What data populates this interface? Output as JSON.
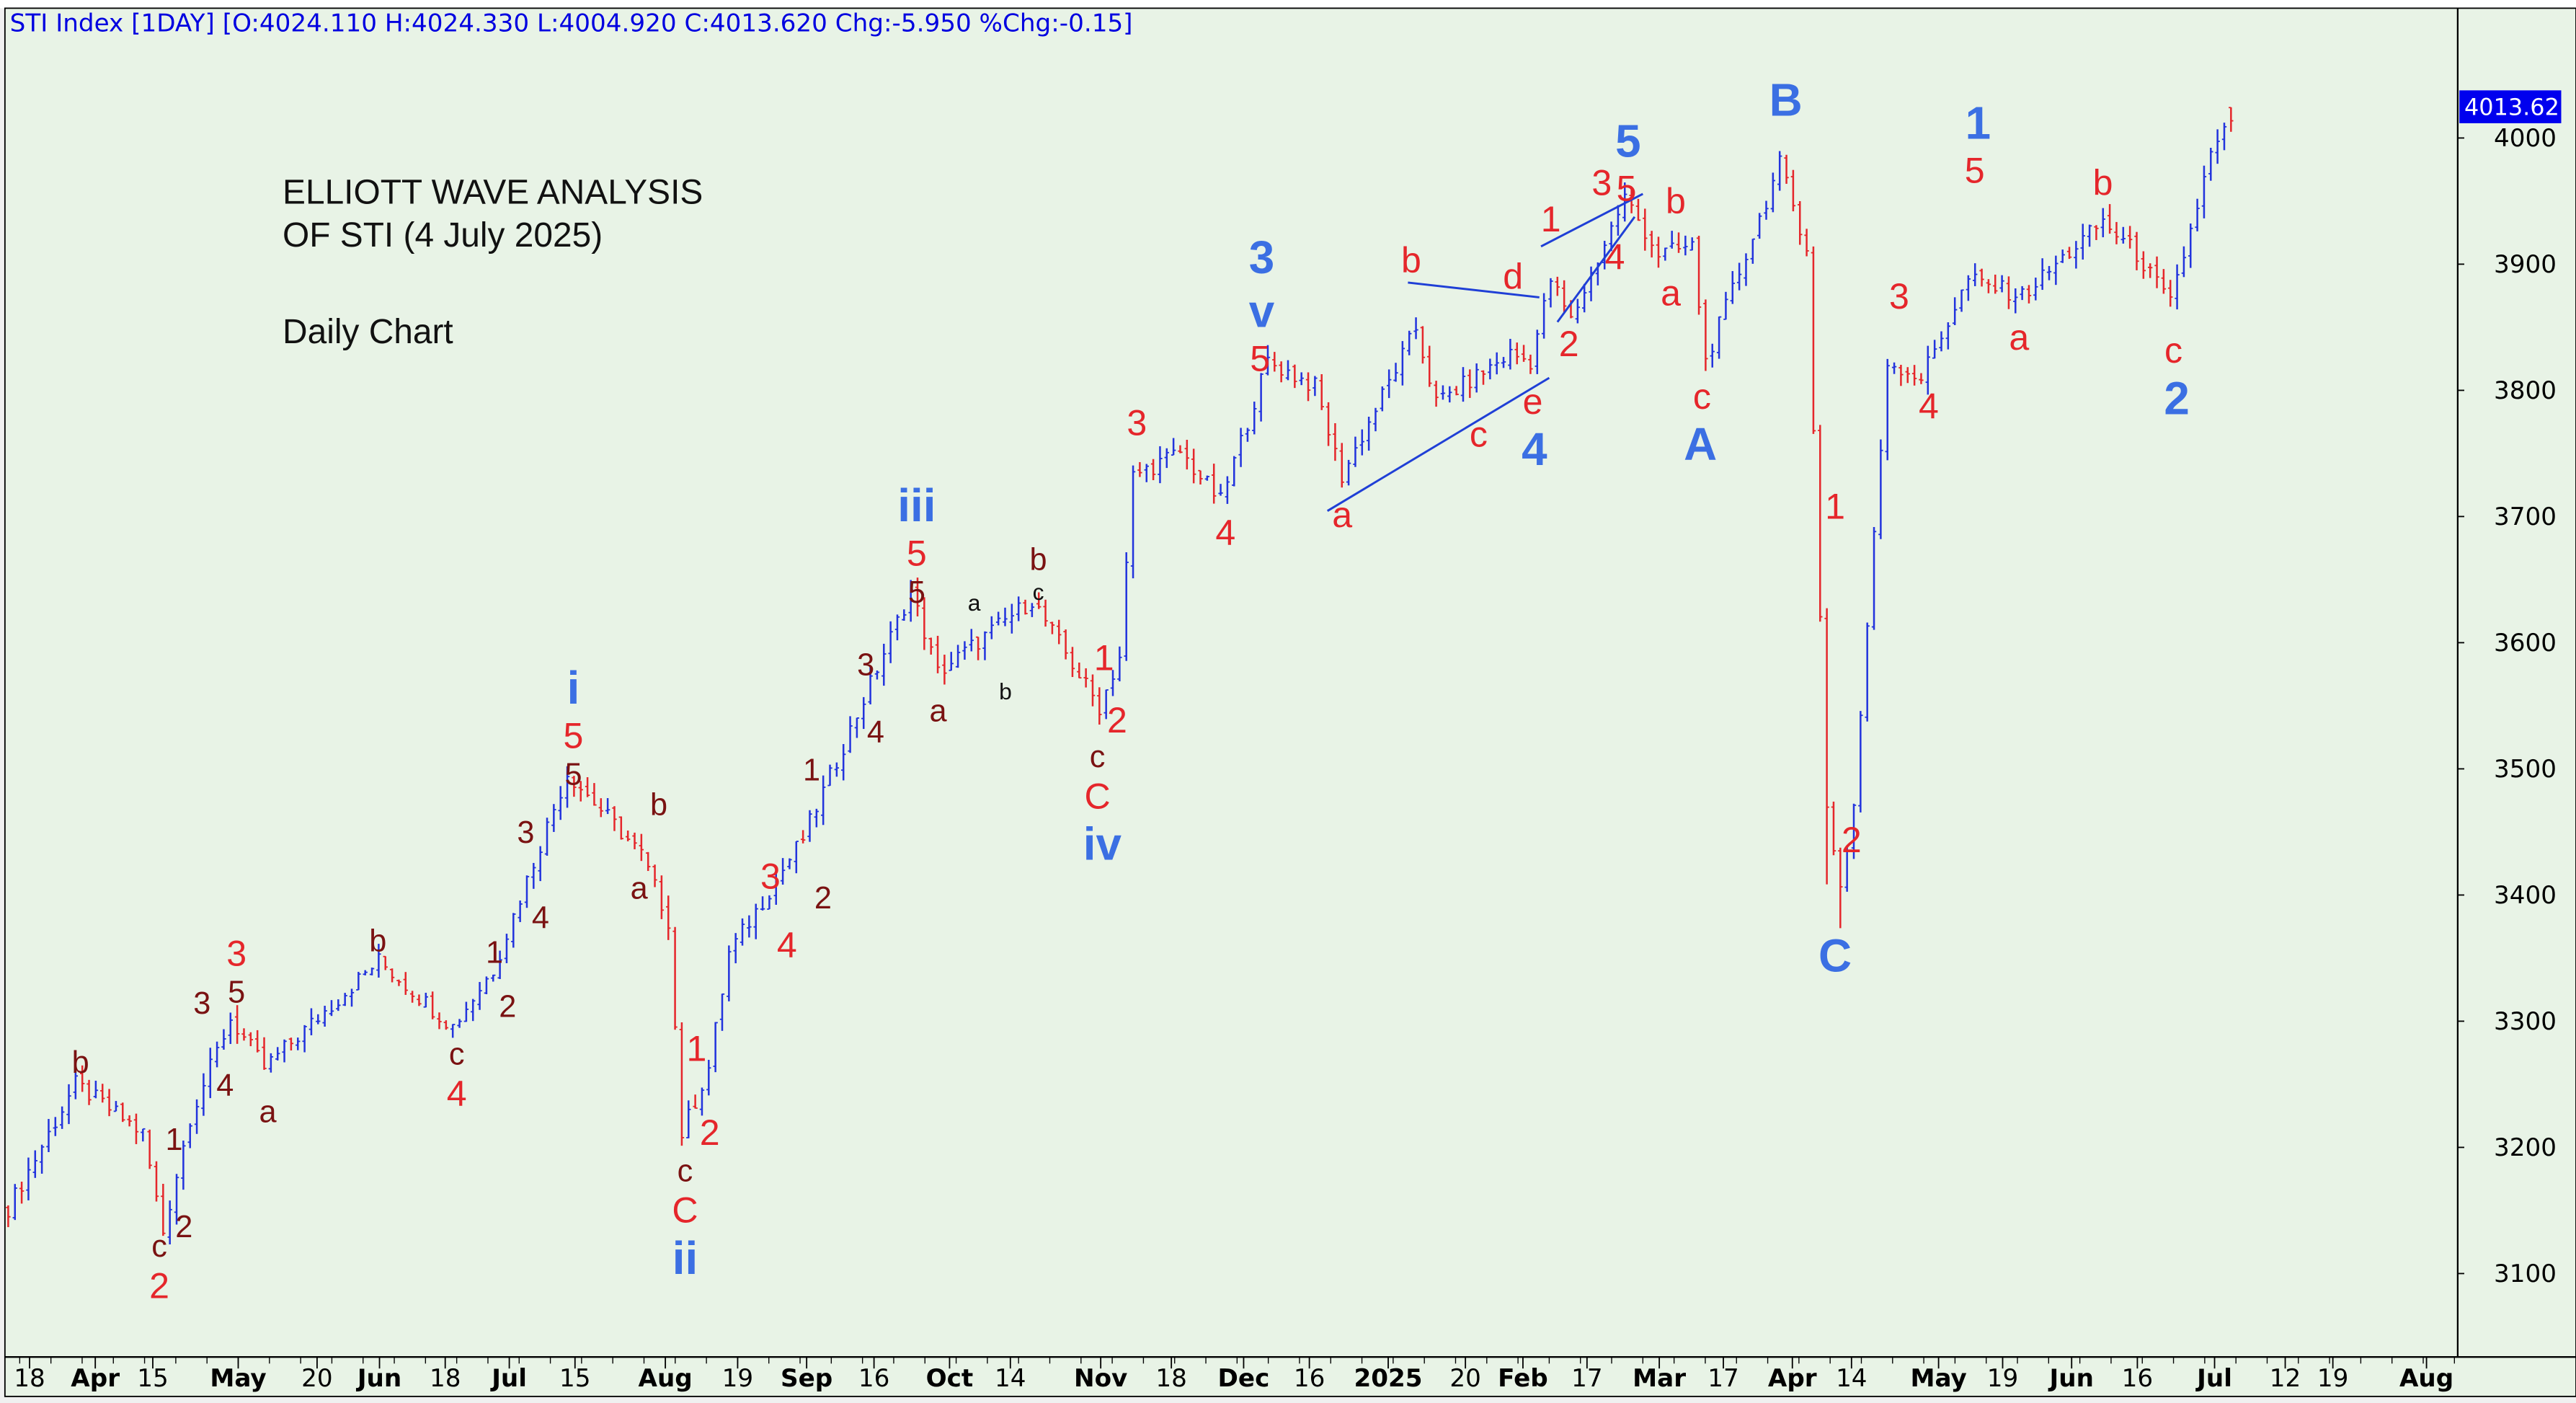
{
  "header": {
    "text": "STI Index [1DAY] [O:4024.110 H:4024.330 L:4004.920 C:4013.620 Chg:-5.950 %Chg:-0.15]"
  },
  "annotation_title": {
    "line1": "ELLIOTT WAVE ANALYSIS",
    "line2": "OF STI (4 July 2025)",
    "line3": "Daily Chart"
  },
  "last_price_tag": "4013.62",
  "colors": {
    "background": "#e8f3e6",
    "up_bar": "#2233dd",
    "down_bar": "#e5262b",
    "wave_red": "#e5262b",
    "wave_brown": "#7a1212",
    "wave_blue": "#3b6fe3",
    "trendline": "#1f3fd6",
    "price_tag": "#0000ee"
  },
  "chart_data": {
    "type": "ohlc",
    "title": "STI Index [1DAY]",
    "ylabel": "",
    "ylim": [
      3050,
      4080
    ],
    "y_ticks": [
      "4000",
      "3900",
      "3800",
      "3700",
      "3600",
      "3500",
      "3400",
      "3300",
      "3200",
      "3100"
    ],
    "x_ticks": [
      {
        "t": "18",
        "bold": false
      },
      {
        "t": "Apr",
        "bold": true
      },
      {
        "t": "15",
        "bold": false
      },
      {
        "t": "May",
        "bold": true
      },
      {
        "t": "20",
        "bold": false
      },
      {
        "t": "Jun",
        "bold": true
      },
      {
        "t": "18",
        "bold": false
      },
      {
        "t": "Jul",
        "bold": true
      },
      {
        "t": "15",
        "bold": false
      },
      {
        "t": "Aug",
        "bold": true
      },
      {
        "t": "19",
        "bold": false
      },
      {
        "t": "Sep",
        "bold": true
      },
      {
        "t": "16",
        "bold": false
      },
      {
        "t": "Oct",
        "bold": true
      },
      {
        "t": "14",
        "bold": false
      },
      {
        "t": "Nov",
        "bold": true
      },
      {
        "t": "18",
        "bold": false
      },
      {
        "t": "Dec",
        "bold": true
      },
      {
        "t": "16",
        "bold": false
      },
      {
        "t": "2025",
        "bold": true
      },
      {
        "t": "20",
        "bold": false
      },
      {
        "t": "Feb",
        "bold": true
      },
      {
        "t": "17",
        "bold": false
      },
      {
        "t": "Mar",
        "bold": true
      },
      {
        "t": "17",
        "bold": false
      },
      {
        "t": "Apr",
        "bold": true
      },
      {
        "t": "14",
        "bold": false
      },
      {
        "t": "May",
        "bold": true
      },
      {
        "t": "19",
        "bold": false
      },
      {
        "t": "Jun",
        "bold": true
      },
      {
        "t": "16",
        "bold": false
      },
      {
        "t": "Jul",
        "bold": true
      },
      {
        "t": "12",
        "bold": false
      },
      {
        "t": "19",
        "bold": false
      },
      {
        "t": "Aug",
        "bold": true
      }
    ],
    "price_path": [
      [
        0,
        3152
      ],
      [
        10,
        3250
      ],
      [
        20,
        3211
      ],
      [
        23,
        3133
      ],
      [
        27,
        3224
      ],
      [
        33,
        3302
      ],
      [
        38,
        3263
      ],
      [
        55,
        3348
      ],
      [
        66,
        3296
      ],
      [
        72,
        3341
      ],
      [
        83,
        3497
      ],
      [
        94,
        3432
      ],
      [
        98,
        3380
      ],
      [
        100,
        3211
      ],
      [
        104,
        3263
      ],
      [
        107,
        3354
      ],
      [
        118,
        3445
      ],
      [
        134,
        3641
      ],
      [
        138,
        3576
      ],
      [
        152,
        3634
      ],
      [
        162,
        3549
      ],
      [
        165,
        3589
      ],
      [
        167,
        3732
      ],
      [
        174,
        3751
      ],
      [
        180,
        3712
      ],
      [
        187,
        3823
      ],
      [
        194,
        3803
      ],
      [
        198,
        3732
      ],
      [
        209,
        3849
      ],
      [
        212,
        3790
      ],
      [
        223,
        3829
      ],
      [
        226,
        3823
      ],
      [
        229,
        3888
      ],
      [
        232,
        3855
      ],
      [
        240,
        3953
      ],
      [
        245,
        3908
      ],
      [
        250,
        3914
      ],
      [
        252,
        3823
      ],
      [
        263,
        3979
      ],
      [
        267,
        3914
      ],
      [
        270,
        3471
      ],
      [
        272,
        3406
      ],
      [
        274,
        3471
      ],
      [
        276,
        3614
      ],
      [
        279,
        3823
      ],
      [
        284,
        3810
      ],
      [
        291,
        3888
      ],
      [
        299,
        3875
      ],
      [
        311,
        3934
      ],
      [
        316,
        3908
      ],
      [
        321,
        3868
      ],
      [
        327,
        3986
      ],
      [
        330,
        4013.62
      ]
    ],
    "last_bar": {
      "open": 4024.11,
      "high": 4024.33,
      "low": 4004.92,
      "close": 4013.62
    },
    "wave_labels": [
      {
        "t": "b",
        "c": "d"
      },
      {
        "t": "1",
        "c": "d"
      },
      {
        "t": "2",
        "c": "d"
      },
      {
        "t": "c",
        "c": "d"
      },
      {
        "t": "2",
        "c": "r"
      },
      {
        "t": "3",
        "c": "d"
      },
      {
        "t": "3",
        "c": "r"
      },
      {
        "t": "5",
        "c": "d"
      },
      {
        "t": "4",
        "c": "d"
      },
      {
        "t": "a",
        "c": "d"
      },
      {
        "t": "b",
        "c": "d"
      },
      {
        "t": "c",
        "c": "d"
      },
      {
        "t": "4",
        "c": "r"
      },
      {
        "t": "1",
        "c": "d"
      },
      {
        "t": "2",
        "c": "d"
      },
      {
        "t": "3",
        "c": "d"
      },
      {
        "t": "4",
        "c": "d"
      },
      {
        "t": "i",
        "c": "b"
      },
      {
        "t": "5",
        "c": "r"
      },
      {
        "t": "5",
        "c": "d"
      },
      {
        "t": "b",
        "c": "d"
      },
      {
        "t": "a",
        "c": "d"
      },
      {
        "t": "c",
        "c": "d"
      },
      {
        "t": "C",
        "c": "r"
      },
      {
        "t": "ii",
        "c": "b"
      },
      {
        "t": "1",
        "c": "r"
      },
      {
        "t": "2",
        "c": "r"
      },
      {
        "t": "3",
        "c": "r"
      },
      {
        "t": "4",
        "c": "r"
      },
      {
        "t": "1",
        "c": "d"
      },
      {
        "t": "2",
        "c": "d"
      },
      {
        "t": "3",
        "c": "d"
      },
      {
        "t": "4",
        "c": "d"
      },
      {
        "t": "iii",
        "c": "b"
      },
      {
        "t": "5",
        "c": "r"
      },
      {
        "t": "5",
        "c": "d"
      },
      {
        "t": "a",
        "c": "k"
      },
      {
        "t": "a",
        "c": "d"
      },
      {
        "t": "b",
        "c": "k"
      },
      {
        "t": "b",
        "c": "d"
      },
      {
        "t": "c",
        "c": "k"
      },
      {
        "t": "1",
        "c": "r"
      },
      {
        "t": "2",
        "c": "r"
      },
      {
        "t": "c",
        "c": "d"
      },
      {
        "t": "C",
        "c": "r"
      },
      {
        "t": "iv",
        "c": "b"
      },
      {
        "t": "3",
        "c": "r"
      },
      {
        "t": "4",
        "c": "r"
      },
      {
        "t": "3",
        "c": "b"
      },
      {
        "t": "v",
        "c": "b"
      },
      {
        "t": "5",
        "c": "r"
      },
      {
        "t": "b",
        "c": "r"
      },
      {
        "t": "a",
        "c": "r"
      },
      {
        "t": "c",
        "c": "r"
      },
      {
        "t": "d",
        "c": "r"
      },
      {
        "t": "e",
        "c": "r"
      },
      {
        "t": "4",
        "c": "b"
      },
      {
        "t": "1",
        "c": "r"
      },
      {
        "t": "2",
        "c": "r"
      },
      {
        "t": "3",
        "c": "r"
      },
      {
        "t": "5",
        "c": "r"
      },
      {
        "t": "5",
        "c": "b"
      },
      {
        "t": "4",
        "c": "r"
      },
      {
        "t": "b",
        "c": "r"
      },
      {
        "t": "a",
        "c": "r"
      },
      {
        "t": "c",
        "c": "r"
      },
      {
        "t": "A",
        "c": "b"
      },
      {
        "t": "B",
        "c": "b"
      },
      {
        "t": "1",
        "c": "r"
      },
      {
        "t": "2",
        "c": "r"
      },
      {
        "t": "C",
        "c": "b"
      },
      {
        "t": "3",
        "c": "r"
      },
      {
        "t": "4",
        "c": "r"
      },
      {
        "t": "1",
        "c": "b"
      },
      {
        "t": "5",
        "c": "r"
      },
      {
        "t": "a",
        "c": "r"
      },
      {
        "t": "b",
        "c": "r"
      },
      {
        "t": "c",
        "c": "r"
      },
      {
        "t": "2",
        "c": "b"
      }
    ]
  }
}
